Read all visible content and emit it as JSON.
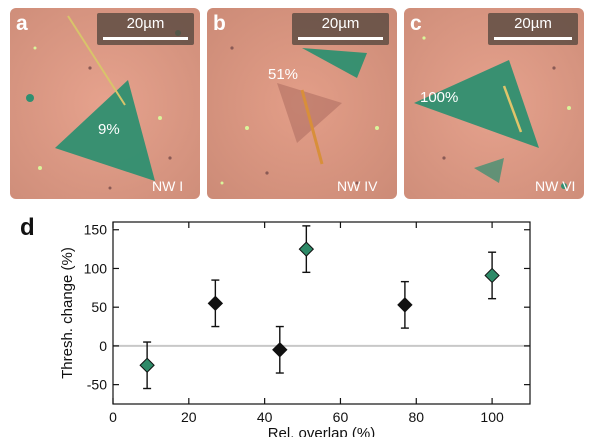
{
  "panels": [
    {
      "letter": "a",
      "scale": "20µm",
      "overlap_label": "9%",
      "nw_label": "NW I"
    },
    {
      "letter": "b",
      "scale": "20µm",
      "overlap_label": "51%",
      "nw_label": "NW IV"
    },
    {
      "letter": "c",
      "scale": "20µm",
      "overlap_label": "100%",
      "nw_label": "NW VI"
    }
  ],
  "chart_letter": "d",
  "chart_data": {
    "type": "scatter",
    "xlabel": "Rel. overlap (%)",
    "ylabel": "Thresh. change (%)",
    "xlim": [
      0,
      110
    ],
    "ylim": [
      -75,
      160
    ],
    "xticks": [
      0,
      20,
      40,
      60,
      80,
      100
    ],
    "yticks": [
      -50,
      0,
      50,
      100,
      150
    ],
    "zero_line": true,
    "points": [
      {
        "x": 9,
        "y": -25,
        "err": 30,
        "color": "#2e8a68"
      },
      {
        "x": 27,
        "y": 55,
        "err": 30,
        "color": "#111111"
      },
      {
        "x": 44,
        "y": -5,
        "err": 30,
        "color": "#111111"
      },
      {
        "x": 51,
        "y": 125,
        "err": 30,
        "color": "#2e8a68"
      },
      {
        "x": 77,
        "y": 53,
        "err": 30,
        "color": "#111111"
      },
      {
        "x": 100,
        "y": 91,
        "err": 30,
        "color": "#2e8a68"
      }
    ]
  }
}
